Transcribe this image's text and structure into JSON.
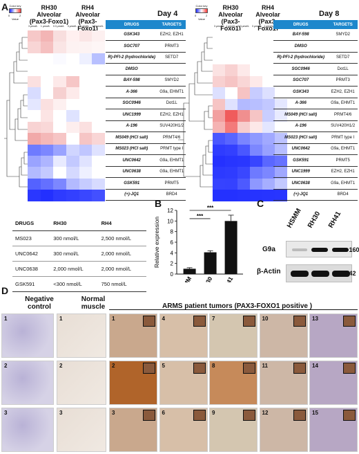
{
  "panel_labels": {
    "a": "A",
    "b": "B",
    "c": "C",
    "d": "D"
  },
  "color_key": {
    "title": "Color key",
    "min": "0",
    "max": "2",
    "label": "Value",
    "colors": [
      "#1f2bff",
      "#ffffff",
      "#ff3a3a"
    ]
  },
  "left": {
    "col_headers": [
      "RH30 Alveolar (Pax3-Foxo1)",
      "RH4 Alveolar (Pax3-Foxo1)"
    ],
    "conc": [
      "3 μmol/L",
      "1 μmol/L",
      "0.3 μmol/L",
      "3 μmol/L",
      "1 μmol/L",
      "0.3 μmol/L"
    ],
    "day": "Day 4",
    "thead": [
      "DRUGS",
      "TARGETS"
    ],
    "rows": [
      {
        "drug": "GSK343",
        "target": "EZH2, EZH1"
      },
      {
        "drug": "SGC707",
        "target": "PRMT3"
      },
      {
        "drug": "R)-PFI-2 (hydrochloride)",
        "target": "SETD7"
      },
      {
        "drug": "DMSO",
        "target": ""
      },
      {
        "drug": "BAY-598",
        "target": "SMYD2"
      },
      {
        "drug": "A-366",
        "target": "G9a, EHMT1"
      },
      {
        "drug": "SGC0946",
        "target": "Dot1L"
      },
      {
        "drug": "UNC1999",
        "target": "EZH2, EZH1"
      },
      {
        "drug": "A-196",
        "target": "SUV420H1/2"
      },
      {
        "drug": "MS049 (HCl salt)",
        "target": "PRMT4/6"
      },
      {
        "drug": "MS023 (HCl salt)",
        "target": "PRMT type I"
      },
      {
        "drug": "UNC0642",
        "target": "G9a, EHMT1"
      },
      {
        "drug": "UNC0638",
        "target": "G9a, EHMT1"
      },
      {
        "drug": "GSK591",
        "target": "PRMT5"
      },
      {
        "drug": "(+)-JQ1",
        "target": "BRD4"
      }
    ],
    "heat": [
      [
        "#f6c8c8",
        "#f3b5b5",
        "#f8dede",
        "#fff0f0",
        "#fbe6e6",
        "#fdf0f0"
      ],
      [
        "#f8d5d5",
        "#f5c0c0",
        "#fae5e5",
        "#fdf2f2",
        "#fdf3f3",
        "#fef6f6"
      ],
      [
        "#fff",
        "#fff",
        "#fafaff",
        "#fff",
        "#eef0ff",
        "#b8c0ff"
      ],
      [
        "#fff",
        "#fff",
        "#fff",
        "#fff",
        "#fff",
        "#fff"
      ],
      [
        "#fbe0e0",
        "#fff",
        "#fde9e9",
        "#f6c6c6",
        "#fff",
        "#fff"
      ],
      [
        "#d8dcff",
        "#fff",
        "#f6d0d0",
        "#fdeaea",
        "#fff",
        "#fff"
      ],
      [
        "#e4e7ff",
        "#fbe0e0",
        "#fdf0f0",
        "#fff",
        "#fff",
        "#fff"
      ],
      [
        "#fff",
        "#fce4e4",
        "#fff",
        "#dfe3ff",
        "#fff",
        "#fff"
      ],
      [
        "#f8d3d3",
        "#f9d8d8",
        "#fff",
        "#fdeeee",
        "#fbe0e0",
        "#fff"
      ],
      [
        "#f1a9a9",
        "#f4b8b8",
        "#f6c5c5",
        "#fff",
        "#f6c5c5",
        "#f9d6d6"
      ],
      [
        "#6e7bff",
        "#7c87ff",
        "#9aa3ff",
        "#d0d5ff",
        "#c0c6ff",
        "#dfe2ff"
      ],
      [
        "#9aa3ff",
        "#aeb5ff",
        "#e8eaff",
        "#c3c9ff",
        "#e0e3ff",
        "#fff"
      ],
      [
        "#b3baff",
        "#c4caff",
        "#fff",
        "#d5d9ff",
        "#eef0ff",
        "#fff"
      ],
      [
        "#5462ff",
        "#6470ff",
        "#7c87ff",
        "#b3baff",
        "#c6ccff",
        "#d7dbff"
      ],
      [
        "#2a37ff",
        "#2330ff",
        "#2e3bff",
        "#3340ff",
        "#3a47ff",
        "#4350ff"
      ]
    ]
  },
  "right": {
    "col_headers": [
      "RH30 Alveolar (Pax3-Foxo1)",
      "RH4 Alveolar (Pax3-Foxo1)"
    ],
    "conc": [
      "3 μmol/L",
      "1 μmol/L",
      "0.3 μmol/L",
      "3 μmol/L",
      "1 μmol/L",
      "0.3 μmol/L"
    ],
    "day": "Day 8",
    "thead": [
      "DRUGS",
      "TARGETS"
    ],
    "rows": [
      {
        "drug": "BAY-598",
        "target": "SMYD2"
      },
      {
        "drug": "DMSO",
        "target": ""
      },
      {
        "drug": "R)-PFI-2 (hydrochloride)",
        "target": "SETD7"
      },
      {
        "drug": "SGC0946",
        "target": "Dot1L"
      },
      {
        "drug": "SGC707",
        "target": "PRMT3"
      },
      {
        "drug": "GSK343",
        "target": "EZH2, EZH1"
      },
      {
        "drug": "A-366",
        "target": "G9a, EHMT1"
      },
      {
        "drug": "MS049 (HCl salt)",
        "target": "PRMT4/6"
      },
      {
        "drug": "A-196",
        "target": "SUV420H1/2"
      },
      {
        "drug": "MS023 (HCl salt)",
        "target": "PRMT type I"
      },
      {
        "drug": "UNC0642",
        "target": "G9a, EHMT1"
      },
      {
        "drug": "GSK591",
        "target": "PRMT5"
      },
      {
        "drug": "UNC1999",
        "target": "EZH2, EZH1"
      },
      {
        "drug": "UNC0638",
        "target": "G9a, EHMT1"
      },
      {
        "drug": "(+)-JQ1",
        "target": "BRD4"
      }
    ],
    "heat": [
      [
        "#fff",
        "#fff",
        "#fff",
        "#fff",
        "#fff",
        "#fff"
      ],
      [
        "#fff",
        "#fff",
        "#fff",
        "#fff",
        "#fff",
        "#fff"
      ],
      [
        "#fff",
        "#fff",
        "#fff",
        "#fff",
        "#fff",
        "#fff"
      ],
      [
        "#fbe2e2",
        "#f8d1d1",
        "#fde9e9",
        "#fff",
        "#fff",
        "#fff"
      ],
      [
        "#f8d0d0",
        "#f6c4c4",
        "#f9d6d6",
        "#fde9e9",
        "#fff",
        "#fff"
      ],
      [
        "#dde0ff",
        "#fff",
        "#f6c3c3",
        "#c7ccff",
        "#dde0ff",
        "#fff"
      ],
      [
        "#f6c4c4",
        "#dfe2ff",
        "#b3baff",
        "#b8bfff",
        "#c2c8ff",
        "#e4e7ff"
      ],
      [
        "#f29f9f",
        "#f05c5c",
        "#f08f8f",
        "#f6c5c5",
        "#c9ceff",
        "#e8eaff"
      ],
      [
        "#f5b3b3",
        "#f37a7a",
        "#f7cdcd",
        "#fde8e8",
        "#e3e6ff",
        "#fff"
      ],
      [
        "#4a57ff",
        "#5865ff",
        "#7a85ff",
        "#8f99ff",
        "#a1a9ff",
        "#bcc2ff"
      ],
      [
        "#2f3cff",
        "#3340ff",
        "#4a57ff",
        "#7c87ff",
        "#98a1ff",
        "#b7beff"
      ],
      [
        "#2531ff",
        "#2835ff",
        "#2a37ff",
        "#3845ff",
        "#5a67ff",
        "#6672ff"
      ],
      [
        "#2d3aff",
        "#2f3cff",
        "#3a47ff",
        "#6e7aff",
        "#7c87ff",
        "#a0a8ff"
      ],
      [
        "#3643ff",
        "#3542ff",
        "#4d5aff",
        "#8e98ff",
        "#a6aeff",
        "#c3c9ff"
      ],
      [
        "#2431ff",
        "#2431ff",
        "#2633ff",
        "#2633ff",
        "#2734ff",
        "#2835ff"
      ]
    ]
  },
  "ic50": {
    "headers": [
      "DRUGS",
      "RH30",
      "RH4"
    ],
    "rows": [
      [
        "MS023",
        "300 nmol/L",
        "2,500 nmol/L"
      ],
      [
        "UNC0642",
        "300 nmol/L",
        "2,000 nmol/L"
      ],
      [
        "UNC0638",
        "2,000 nmol/L",
        "2,000 nmol/L"
      ],
      [
        "GSK591",
        "<300 nmol/L",
        "750 nmol/L"
      ]
    ]
  },
  "chart_data": {
    "type": "bar",
    "categories": [
      "HSMM",
      "RH30",
      "RH41"
    ],
    "values": [
      1.0,
      4.1,
      10.0
    ],
    "errors": [
      0.2,
      0.3,
      1.1
    ],
    "ylabel": "Relative expression",
    "ylim": [
      0,
      12
    ],
    "yticks": [
      "0",
      "2",
      "4",
      "6",
      "8",
      "10",
      "12"
    ],
    "significance": [
      "***",
      "***"
    ]
  },
  "western": {
    "lanes": [
      "HSMM",
      "RH30",
      "RH41"
    ],
    "bands": [
      {
        "label": "G9a",
        "marker": "- 160"
      },
      {
        "label": "β-Actin",
        "marker": "- 42"
      }
    ]
  },
  "ihc": {
    "group_titles": [
      "Negative control",
      "Normal muscle",
      "ARMS patient tumors (PAX3-FOXO1 positive )"
    ],
    "negative": [
      "1",
      "2",
      "3"
    ],
    "normal": [
      "1",
      "2",
      "3"
    ],
    "tumor_cols": [
      [
        "1",
        "2",
        "3"
      ],
      [
        "4",
        "5",
        "6"
      ],
      [
        "7",
        "8",
        "9"
      ],
      [
        "10",
        "11",
        "12"
      ],
      [
        "13",
        "14",
        "15"
      ]
    ]
  }
}
